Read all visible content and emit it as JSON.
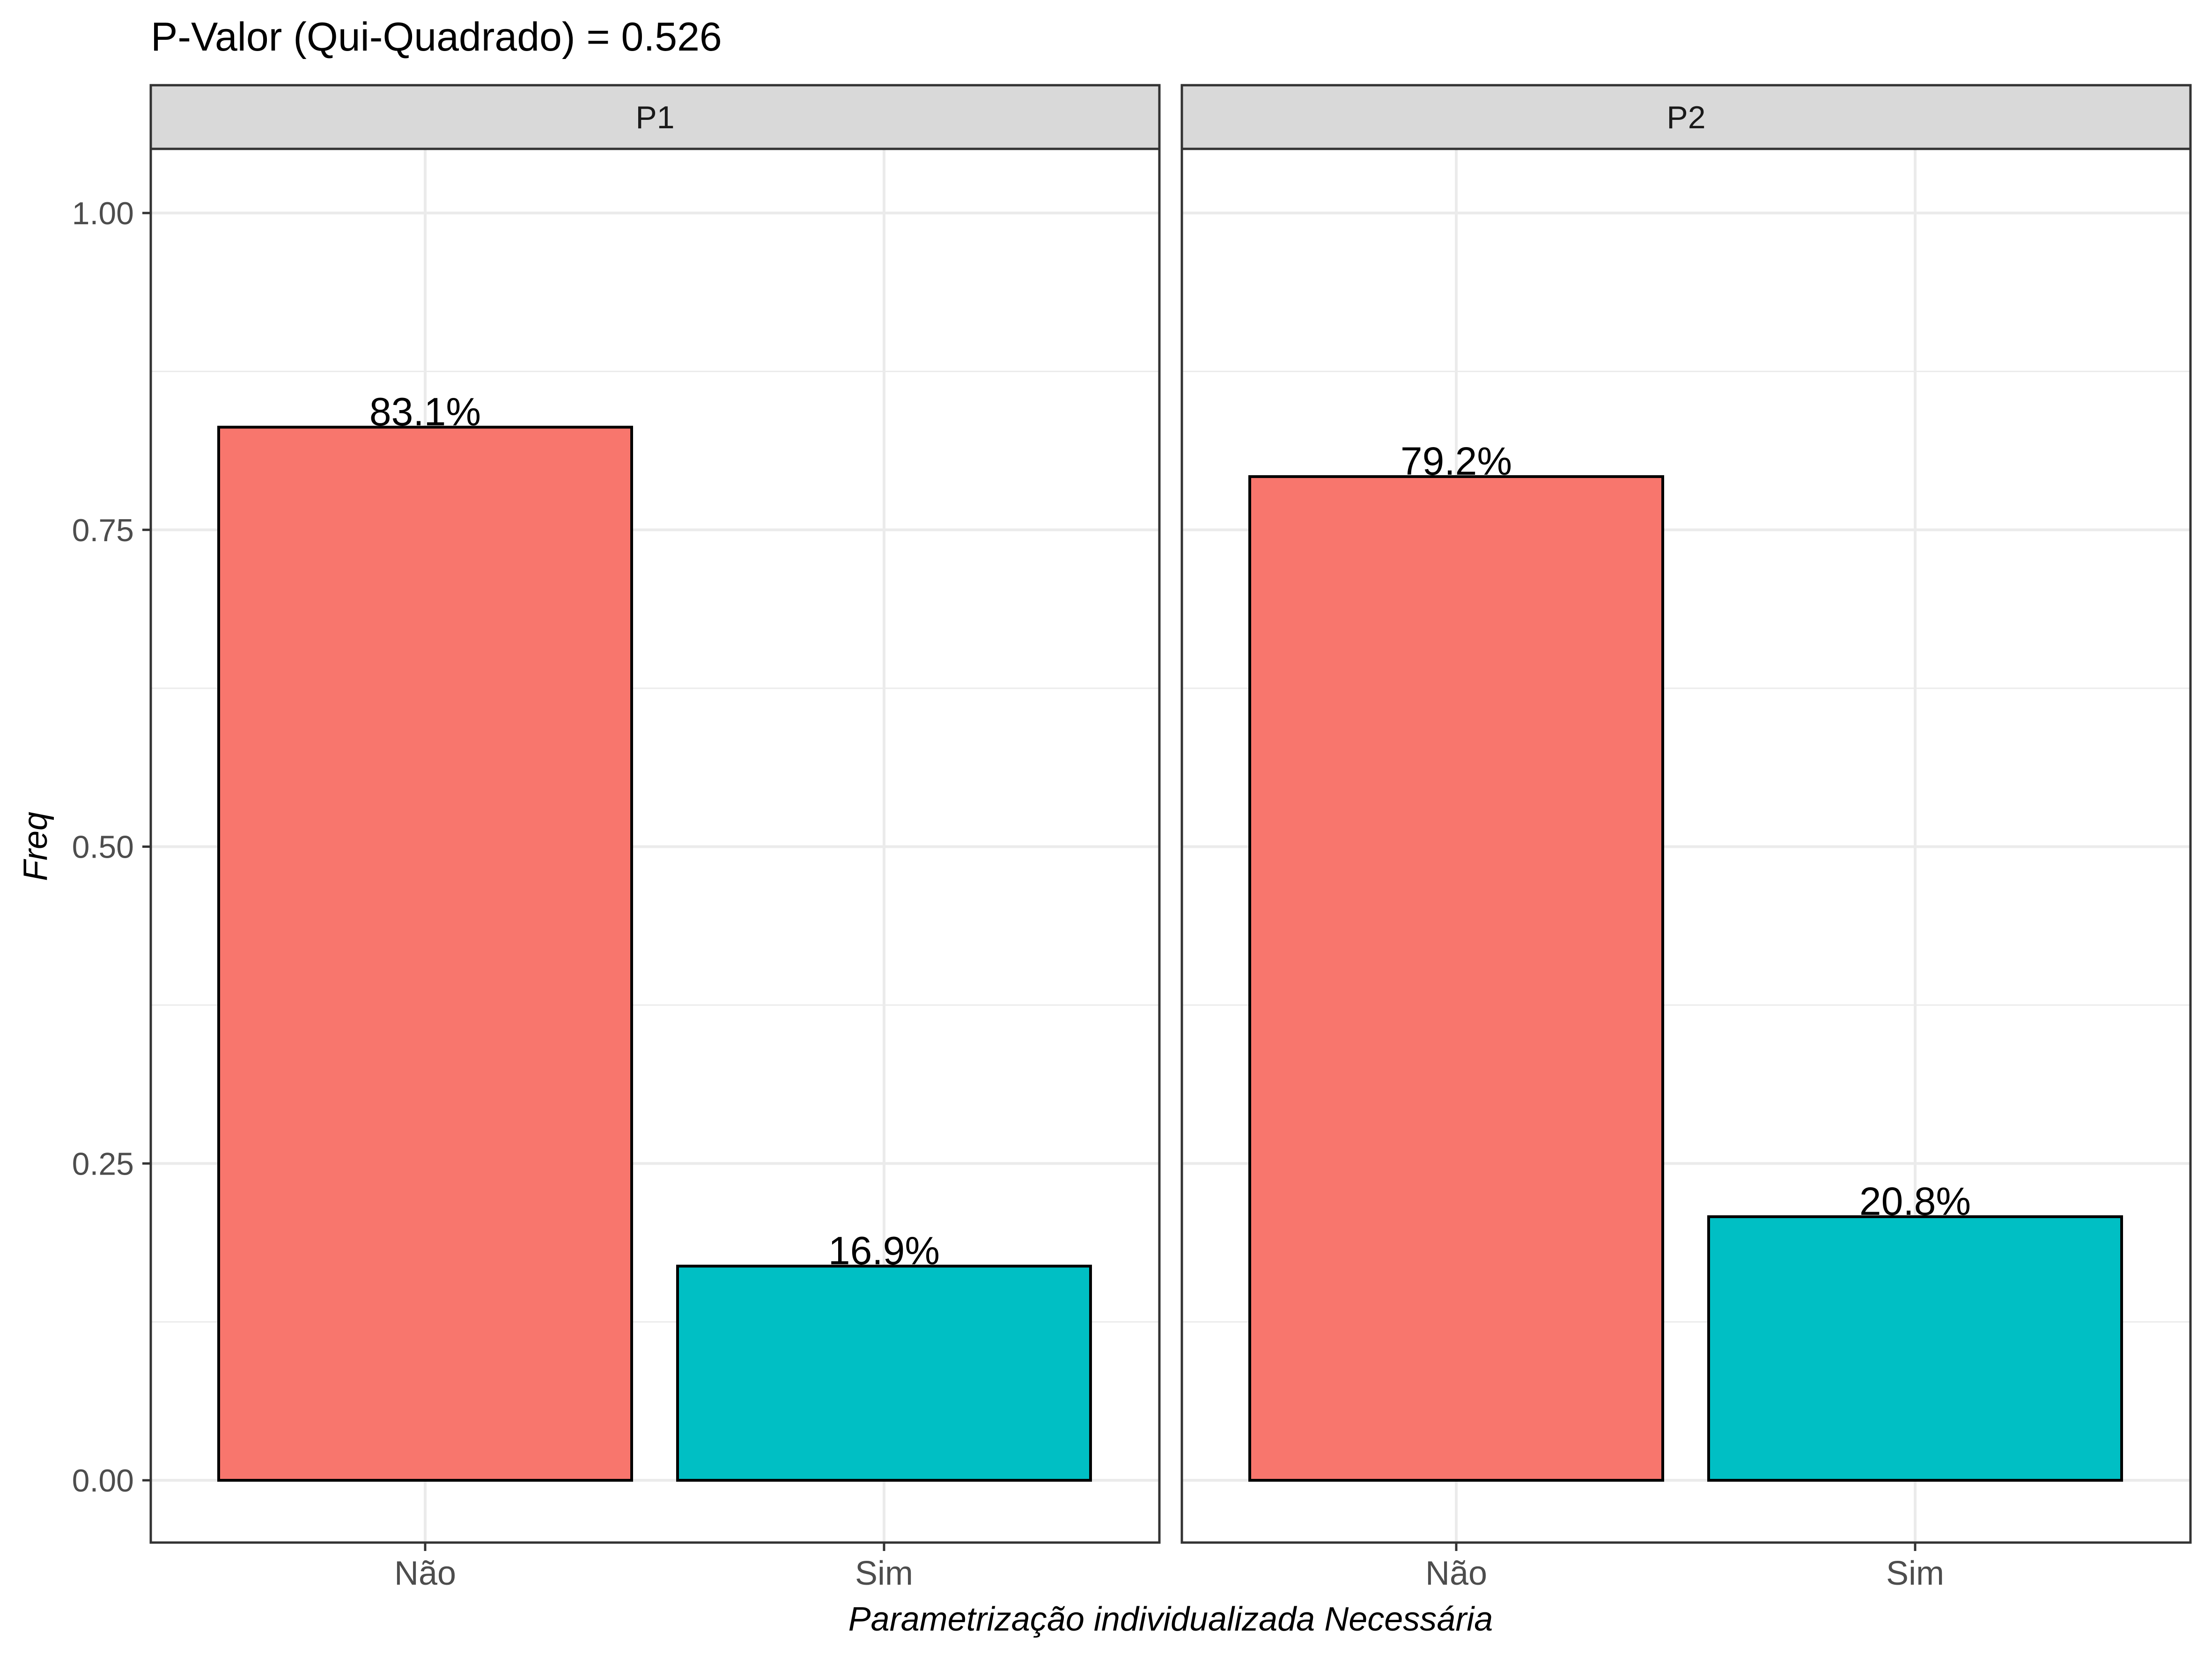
{
  "chart_data": {
    "type": "bar",
    "title": "P-Valor (Qui-Quadrado) = 0.526",
    "xlabel": "Parametrização individualizada Necessária",
    "ylabel": "Freq",
    "ylim": [
      0,
      1.05
    ],
    "y_ticks": [
      0.0,
      0.25,
      0.5,
      0.75,
      1.0
    ],
    "y_tick_labels": [
      "0.00",
      "0.25",
      "0.50",
      "0.75",
      "1.00"
    ],
    "grid": true,
    "legend": "none",
    "categories": [
      "Não",
      "Sim"
    ],
    "category_colors": [
      "#F8766D",
      "#00BFC4"
    ],
    "panels": [
      {
        "name": "P1",
        "values": [
          0.831,
          0.169
        ],
        "labels": [
          "83.1%",
          "16.9%"
        ]
      },
      {
        "name": "P2",
        "values": [
          0.792,
          0.208
        ],
        "labels": [
          "79.2%",
          "20.8%"
        ]
      }
    ]
  },
  "colors": {
    "strip_fill": "#D9D9D9",
    "panel_border": "#333333",
    "grid_major": "#EBEBEB",
    "bar_outline": "#000000"
  }
}
